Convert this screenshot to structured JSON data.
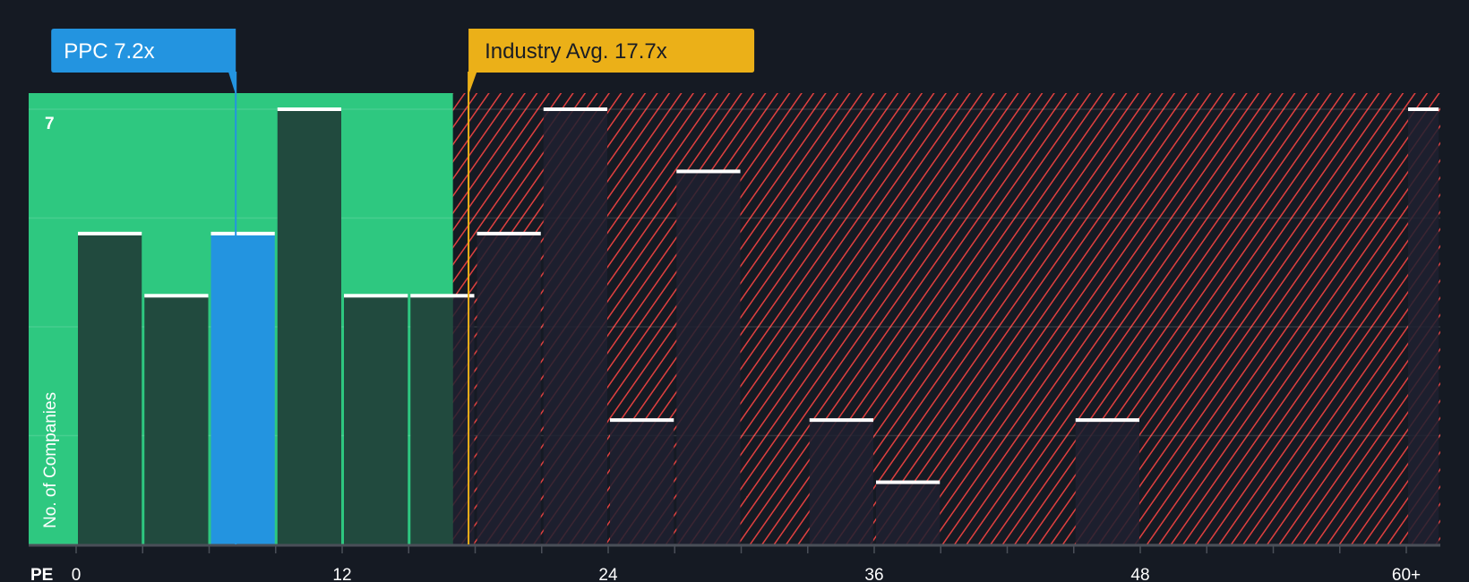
{
  "chart_data": {
    "type": "bar",
    "xlabel": "PE",
    "ylabel": "No. of Companies",
    "x_ticks": [
      "0",
      "12",
      "24",
      "36",
      "48",
      "60+"
    ],
    "y_ticks": [
      "7"
    ],
    "ylim": [
      0,
      7
    ],
    "xlim": [
      0,
      61.5
    ],
    "bin_width": 3,
    "bins": [
      {
        "from": 0,
        "to": 3,
        "count": 5
      },
      {
        "from": 3,
        "to": 6,
        "count": 4
      },
      {
        "from": 6,
        "to": 9,
        "count": 5,
        "highlight": true
      },
      {
        "from": 9,
        "to": 12,
        "count": 7
      },
      {
        "from": 12,
        "to": 15,
        "count": 4
      },
      {
        "from": 15,
        "to": 18,
        "count": 4
      },
      {
        "from": 18,
        "to": 21,
        "count": 5
      },
      {
        "from": 21,
        "to": 24,
        "count": 7
      },
      {
        "from": 24,
        "to": 27,
        "count": 2
      },
      {
        "from": 27,
        "to": 30,
        "count": 6
      },
      {
        "from": 30,
        "to": 33,
        "count": 0
      },
      {
        "from": 33,
        "to": 36,
        "count": 2
      },
      {
        "from": 36,
        "to": 39,
        "count": 1
      },
      {
        "from": 39,
        "to": 42,
        "count": 0
      },
      {
        "from": 42,
        "to": 45,
        "count": 0
      },
      {
        "from": 45,
        "to": 48,
        "count": 2
      },
      {
        "from": 48,
        "to": 51,
        "count": 0
      },
      {
        "from": 51,
        "to": 54,
        "count": 0
      },
      {
        "from": 54,
        "to": 57,
        "count": 0
      },
      {
        "from": 57,
        "to": 60,
        "count": 0
      },
      {
        "from": 60,
        "to": 61.5,
        "count": 7,
        "label": "60+"
      }
    ],
    "company": {
      "label": "PPC 7.2x",
      "value": 7.2
    },
    "industry_avg": {
      "label": "Industry Avg. 17.7x",
      "value": 17.7
    },
    "fair_zone_end": 17.0,
    "grid": true,
    "colors": {
      "background": "#151a23",
      "fair_zone": "#2ec880",
      "bar_in_zone": "#214a3e",
      "company_bar": "#2394e0",
      "bar_hatched": "#1e2130",
      "hatch": "#e0403f",
      "company_accent": "#2394e0",
      "industry_accent": "#ebb018",
      "bar_top": "#ffffff"
    }
  }
}
